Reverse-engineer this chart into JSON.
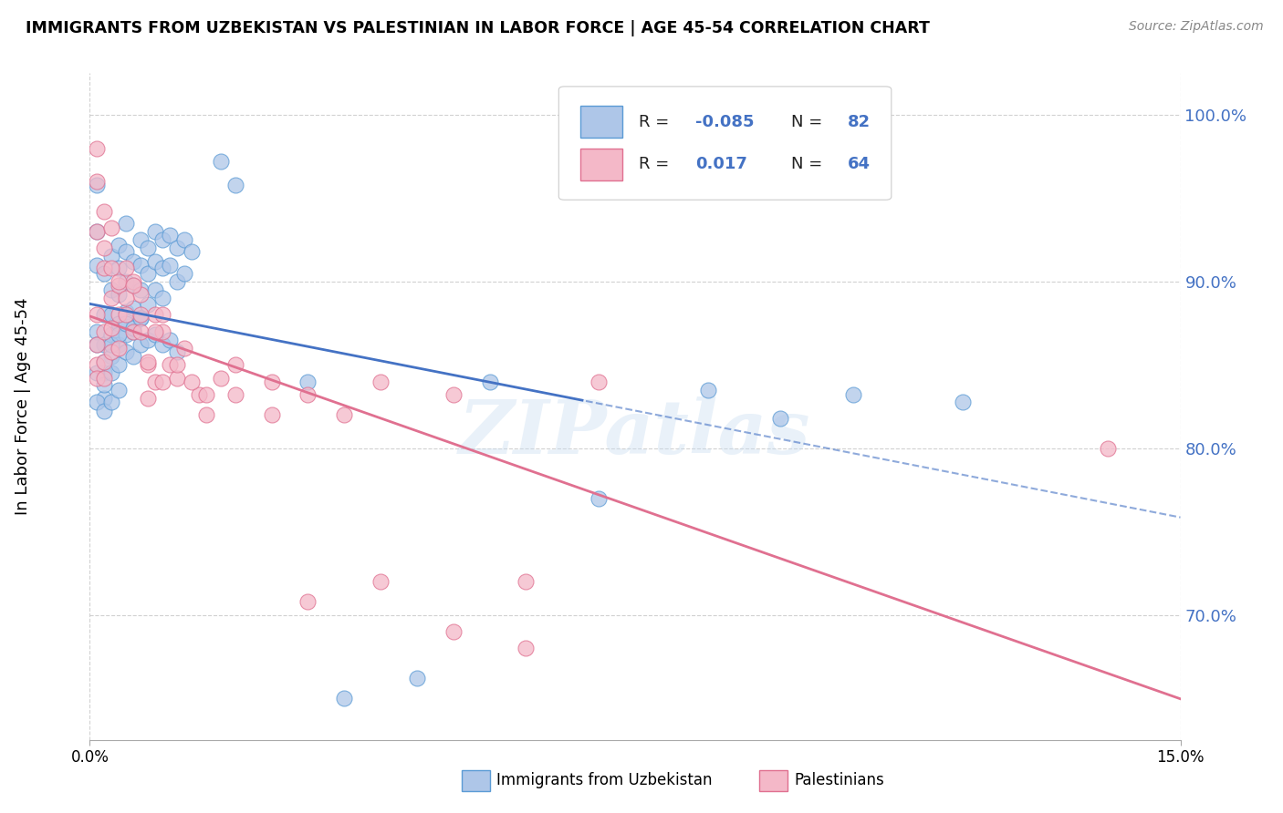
{
  "title": "IMMIGRANTS FROM UZBEKISTAN VS PALESTINIAN IN LABOR FORCE | AGE 45-54 CORRELATION CHART",
  "source": "Source: ZipAtlas.com",
  "ylabel": "In Labor Force | Age 45-54",
  "R_uzbek": -0.085,
  "N_uzbek": 82,
  "R_palest": 0.017,
  "N_palest": 64,
  "color_uzbek_fill": "#aec6e8",
  "color_uzbek_edge": "#5b9bd5",
  "color_palest_fill": "#f4b8c8",
  "color_palest_edge": "#e07090",
  "color_line_uzbek": "#4472c4",
  "color_line_palest": "#e07090",
  "color_blue_label": "#4472c4",
  "x_min": 0.0,
  "x_max": 0.15,
  "y_min": 0.625,
  "y_max": 1.025,
  "uzbek_x": [
    0.001,
    0.001,
    0.001,
    0.001,
    0.002,
    0.002,
    0.002,
    0.002,
    0.002,
    0.003,
    0.003,
    0.003,
    0.003,
    0.003,
    0.004,
    0.004,
    0.004,
    0.004,
    0.004,
    0.005,
    0.005,
    0.005,
    0.005,
    0.005,
    0.006,
    0.006,
    0.006,
    0.006,
    0.007,
    0.007,
    0.007,
    0.007,
    0.008,
    0.008,
    0.008,
    0.009,
    0.009,
    0.009,
    0.01,
    0.01,
    0.01,
    0.011,
    0.011,
    0.012,
    0.012,
    0.013,
    0.013,
    0.014,
    0.001,
    0.001,
    0.001,
    0.002,
    0.002,
    0.002,
    0.003,
    0.003,
    0.003,
    0.004,
    0.004,
    0.004,
    0.005,
    0.005,
    0.006,
    0.006,
    0.007,
    0.007,
    0.008,
    0.009,
    0.01,
    0.011,
    0.012,
    0.018,
    0.02,
    0.03,
    0.035,
    0.045,
    0.055,
    0.07,
    0.085,
    0.095,
    0.105,
    0.12
  ],
  "uzbek_y": [
    0.958,
    0.93,
    0.91,
    0.87,
    0.905,
    0.88,
    0.862,
    0.845,
    0.83,
    0.915,
    0.895,
    0.88,
    0.868,
    0.855,
    0.922,
    0.908,
    0.892,
    0.875,
    0.862,
    0.935,
    0.918,
    0.9,
    0.882,
    0.868,
    0.912,
    0.898,
    0.884,
    0.87,
    0.925,
    0.91,
    0.895,
    0.878,
    0.92,
    0.905,
    0.886,
    0.93,
    0.912,
    0.895,
    0.925,
    0.908,
    0.89,
    0.928,
    0.91,
    0.92,
    0.9,
    0.925,
    0.905,
    0.918,
    0.862,
    0.845,
    0.828,
    0.852,
    0.838,
    0.822,
    0.862,
    0.845,
    0.828,
    0.868,
    0.85,
    0.835,
    0.875,
    0.858,
    0.872,
    0.855,
    0.878,
    0.862,
    0.865,
    0.868,
    0.862,
    0.865,
    0.858,
    0.972,
    0.958,
    0.84,
    0.65,
    0.662,
    0.84,
    0.77,
    0.835,
    0.818,
    0.832,
    0.828
  ],
  "palest_x": [
    0.001,
    0.001,
    0.001,
    0.001,
    0.002,
    0.002,
    0.002,
    0.002,
    0.003,
    0.003,
    0.003,
    0.004,
    0.004,
    0.004,
    0.005,
    0.005,
    0.006,
    0.006,
    0.007,
    0.007,
    0.008,
    0.008,
    0.009,
    0.009,
    0.01,
    0.01,
    0.011,
    0.012,
    0.013,
    0.015,
    0.016,
    0.018,
    0.02,
    0.025,
    0.03,
    0.035,
    0.04,
    0.05,
    0.06,
    0.07,
    0.001,
    0.001,
    0.002,
    0.002,
    0.003,
    0.003,
    0.004,
    0.005,
    0.006,
    0.007,
    0.008,
    0.009,
    0.01,
    0.012,
    0.014,
    0.016,
    0.02,
    0.025,
    0.03,
    0.04,
    0.05,
    0.06,
    0.14,
    0.001
  ],
  "palest_y": [
    0.862,
    0.85,
    0.842,
    0.88,
    0.87,
    0.852,
    0.842,
    0.908,
    0.89,
    0.872,
    0.858,
    0.898,
    0.88,
    0.86,
    0.908,
    0.88,
    0.9,
    0.87,
    0.892,
    0.87,
    0.85,
    0.83,
    0.88,
    0.84,
    0.87,
    0.84,
    0.85,
    0.842,
    0.86,
    0.832,
    0.82,
    0.842,
    0.85,
    0.84,
    0.832,
    0.82,
    0.84,
    0.832,
    0.72,
    0.84,
    0.93,
    0.96,
    0.942,
    0.92,
    0.932,
    0.908,
    0.9,
    0.89,
    0.898,
    0.88,
    0.852,
    0.87,
    0.88,
    0.85,
    0.84,
    0.832,
    0.832,
    0.82,
    0.708,
    0.72,
    0.69,
    0.68,
    0.8,
    0.98
  ],
  "watermark": "ZIPatlas"
}
